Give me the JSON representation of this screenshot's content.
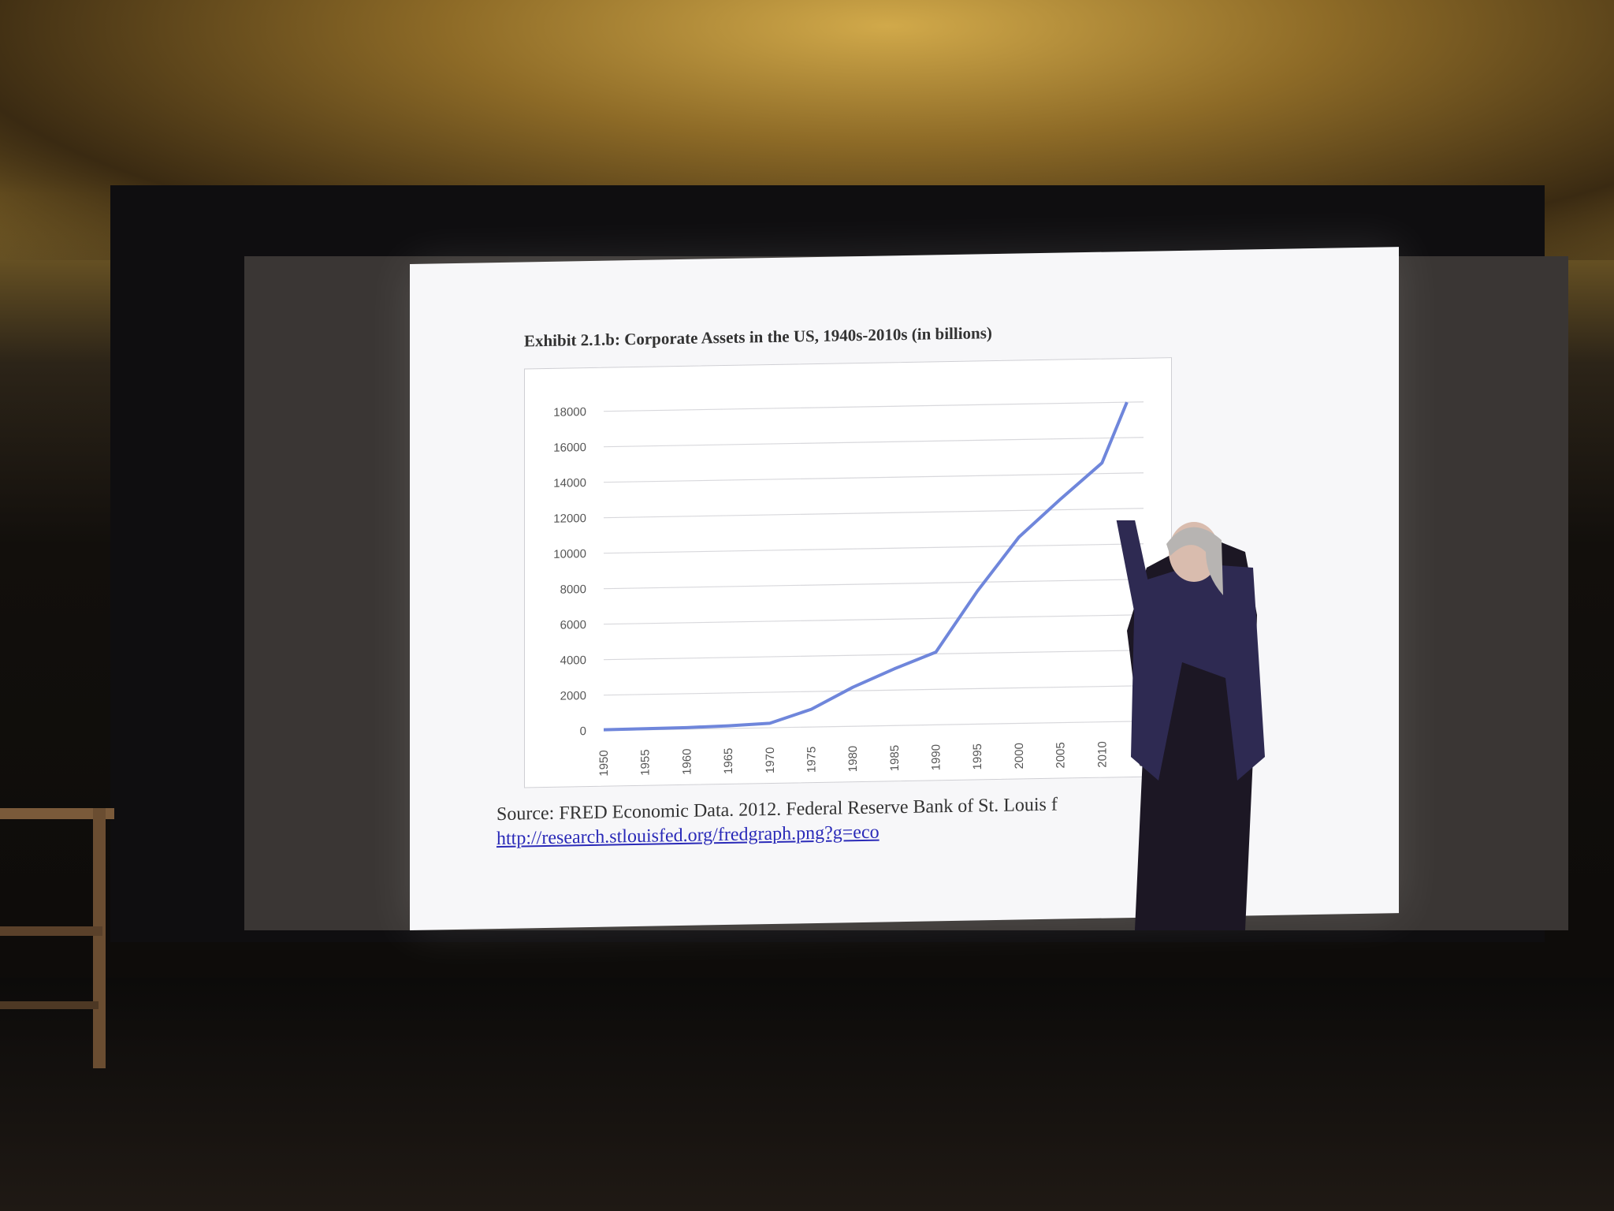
{
  "slide": {
    "title": "Exhibit 2.1.b: Corporate Assets in the US, 1940s-2010s (in billions)",
    "source": "Source: FRED Economic Data.  2012.  Federal Reserve Bank of St. Louis f",
    "url": "http://research.stlouisfed.org/fredgraph.png?g=eco"
  },
  "chart_data": {
    "type": "line",
    "title": "Exhibit 2.1.b: Corporate Assets in the US, 1940s-2010s (in billions)",
    "xlabel": "",
    "ylabel": "",
    "x": [
      1950,
      1955,
      1960,
      1965,
      1970,
      1975,
      1980,
      1985,
      1990,
      1995,
      2000,
      2005,
      2010,
      2013
    ],
    "x_tick_labels": [
      "1950",
      "1955",
      "1960",
      "1965",
      "1970",
      "1975",
      "1980",
      "1985",
      "1990",
      "1995",
      "2000",
      "2005",
      "2010",
      "2015"
    ],
    "y_ticks": [
      0,
      2000,
      4000,
      6000,
      8000,
      10000,
      12000,
      14000,
      16000,
      18000
    ],
    "ylim": [
      0,
      18000
    ],
    "grid": true,
    "legend": "none",
    "series": [
      {
        "values": [
          50,
          70,
          90,
          150,
          250,
          1000,
          2200,
          3200,
          4100,
          7500,
          10500,
          12600,
          14600,
          18000
        ],
        "color": "#6f86db"
      }
    ]
  },
  "colors": {
    "slide_bg": "#f7f7f9",
    "line": "#6f86db",
    "link": "#2a2ab8"
  }
}
